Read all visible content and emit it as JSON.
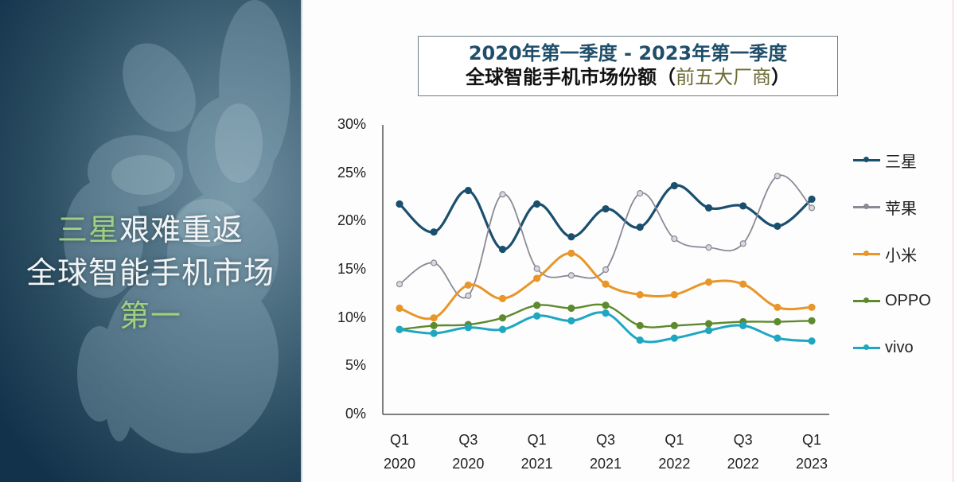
{
  "left_panel": {
    "headline": {
      "line1_green": "三星",
      "line1_rest": "艰难重返",
      "line2": "全球智能手机市场",
      "line3_green": "第一"
    },
    "colors": {
      "background": "#1e4259",
      "highlight_green": "#9fd080",
      "text": "#f2f5f7"
    }
  },
  "title": {
    "line1": "2020年第一季度 - 2023年第一季度",
    "line2_main": "全球智能手机市场份额",
    "line2_paren_open": "（",
    "line2_sub": "前五大厂商",
    "line2_paren_close": "）"
  },
  "chart_data": {
    "type": "line",
    "title": "2020年第一季度 - 2023年第一季度 全球智能手机市场份额（前五大厂商）",
    "xlabel": "",
    "ylabel": "",
    "ylim": [
      0,
      30
    ],
    "yticks": [
      "0%",
      "5%",
      "10%",
      "15%",
      "20%",
      "25%",
      "30%"
    ],
    "x": [
      "Q1 2020",
      "Q2 2020",
      "Q3 2020",
      "Q4 2020",
      "Q1 2021",
      "Q2 2021",
      "Q3 2021",
      "Q4 2021",
      "Q1 2022",
      "Q2 2022",
      "Q3 2022",
      "Q4 2022",
      "Q1 2023"
    ],
    "xtick_labels": [
      {
        "q": "Q1",
        "year": "2020",
        "index": 0
      },
      {
        "q": "Q3",
        "year": "2020",
        "index": 2
      },
      {
        "q": "Q1",
        "year": "2021",
        "index": 4
      },
      {
        "q": "Q3",
        "year": "2021",
        "index": 6
      },
      {
        "q": "Q1",
        "year": "2022",
        "index": 8
      },
      {
        "q": "Q3",
        "year": "2022",
        "index": 10
      },
      {
        "q": "Q1",
        "year": "2023",
        "index": 12
      }
    ],
    "grid": false,
    "legend_position": "right",
    "series": [
      {
        "name": "三星",
        "color": "#1a4f6e",
        "values": [
          21.8,
          18.9,
          23.2,
          17.1,
          21.8,
          18.4,
          21.3,
          19.4,
          23.7,
          21.4,
          21.6,
          19.5,
          22.3
        ]
      },
      {
        "name": "苹果",
        "color": "#8a8a96",
        "values": [
          13.5,
          15.7,
          12.3,
          22.8,
          15.1,
          14.4,
          15.0,
          22.9,
          18.2,
          17.3,
          17.7,
          24.7,
          21.4
        ]
      },
      {
        "name": "小米",
        "color": "#e8962a",
        "values": [
          11.0,
          10.0,
          13.4,
          12.0,
          14.1,
          16.7,
          13.5,
          12.4,
          12.4,
          13.7,
          13.5,
          11.1,
          11.1
        ]
      },
      {
        "name": "OPPO",
        "color": "#5e8a2e",
        "values": [
          8.8,
          9.2,
          9.3,
          10.0,
          11.3,
          11.0,
          11.3,
          9.2,
          9.2,
          9.4,
          9.6,
          9.6,
          9.7
        ]
      },
      {
        "name": "vivo",
        "color": "#1fa7c2",
        "values": [
          8.8,
          8.4,
          9.0,
          8.8,
          10.2,
          9.7,
          10.5,
          7.7,
          7.9,
          8.7,
          9.2,
          7.9,
          7.6
        ]
      }
    ]
  }
}
